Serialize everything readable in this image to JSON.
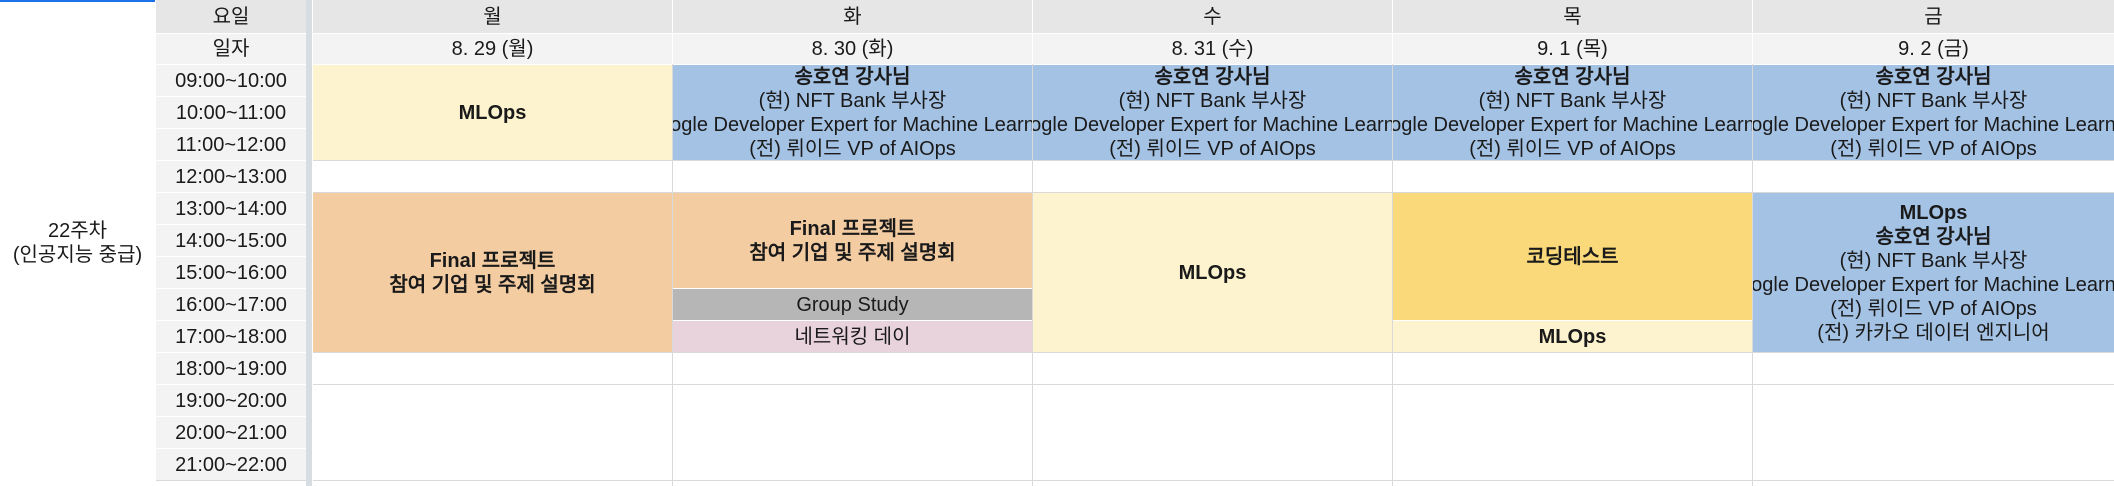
{
  "week": {
    "line1": "22주차",
    "line2": "(인공지능 중급)"
  },
  "row_labels": {
    "day": "요일",
    "date": "일자"
  },
  "days": [
    {
      "name": "월",
      "date": "8. 29 (월)"
    },
    {
      "name": "화",
      "date": "8. 30 (화)"
    },
    {
      "name": "수",
      "date": "8. 31 (수)"
    },
    {
      "name": "목",
      "date": "9. 1 (목)"
    },
    {
      "name": "금",
      "date": "9. 2 (금)"
    }
  ],
  "times": [
    "09:00~10:00",
    "10:00~11:00",
    "11:00~12:00",
    "12:00~13:00",
    "13:00~14:00",
    "14:00~15:00",
    "15:00~16:00",
    "16:00~17:00",
    "17:00~18:00",
    "18:00~19:00",
    "19:00~20:00",
    "20:00~21:00",
    "21:00~22:00"
  ],
  "events": {
    "mon_morning": {
      "title": "MLOps"
    },
    "tue_morning": {
      "instructor": "송호연 강사님",
      "line1": "(현) NFT Bank 부사장",
      "line2": "Google Developer Expert for Machine Learning",
      "line3": "(전) 뤼이드 VP of AIOps"
    },
    "wed_morning": {
      "instructor": "송호연 강사님",
      "line1": "(현) NFT Bank 부사장",
      "line2": "Google Developer Expert for Machine Learning",
      "line3": "(전) 뤼이드 VP of AIOps"
    },
    "thu_morning": {
      "instructor": "송호연 강사님",
      "line1": "(현) NFT Bank 부사장",
      "line2": "Google Developer Expert for Machine Learning",
      "line3": "(전) 뤼이드 VP of AIOps"
    },
    "fri_morning": {
      "instructor": "송호연 강사님",
      "line1": "(현) NFT Bank 부사장",
      "line2": "Google Developer Expert for Machine Learning",
      "line3": "(전) 뤼이드 VP of AIOps"
    },
    "mon_afternoon": {
      "line1": "Final 프로젝트",
      "line2": "참여 기업 및 주제 설명회"
    },
    "tue_afternoon": {
      "line1": "Final 프로젝트",
      "line2": "참여 기업 및 주제 설명회"
    },
    "tue_group_study": {
      "title": "Group Study"
    },
    "tue_networking": {
      "title": "네트워킹 데이"
    },
    "wed_afternoon": {
      "title": "MLOps"
    },
    "thu_coding_test": {
      "title": "코딩테스트"
    },
    "thu_mlops": {
      "title": "MLOps"
    },
    "fri_afternoon": {
      "title": "MLOps",
      "instructor": "송호연 강사님",
      "line1": "(현) NFT Bank 부사장",
      "line2": "Google Developer Expert for Machine Learning",
      "line3": "(전) 뤼이드 VP of AIOps",
      "line4": "(전) 카카오 데이터 엔지니어"
    }
  },
  "colors": {
    "header": "#e6e6e6",
    "light_yellow": "#fdf3cf",
    "blue": "#a4c2e4",
    "orange": "#f3cca2",
    "gold": "#f9d97a",
    "grey": "#b6b6b6",
    "pink": "#e8d3dd"
  }
}
